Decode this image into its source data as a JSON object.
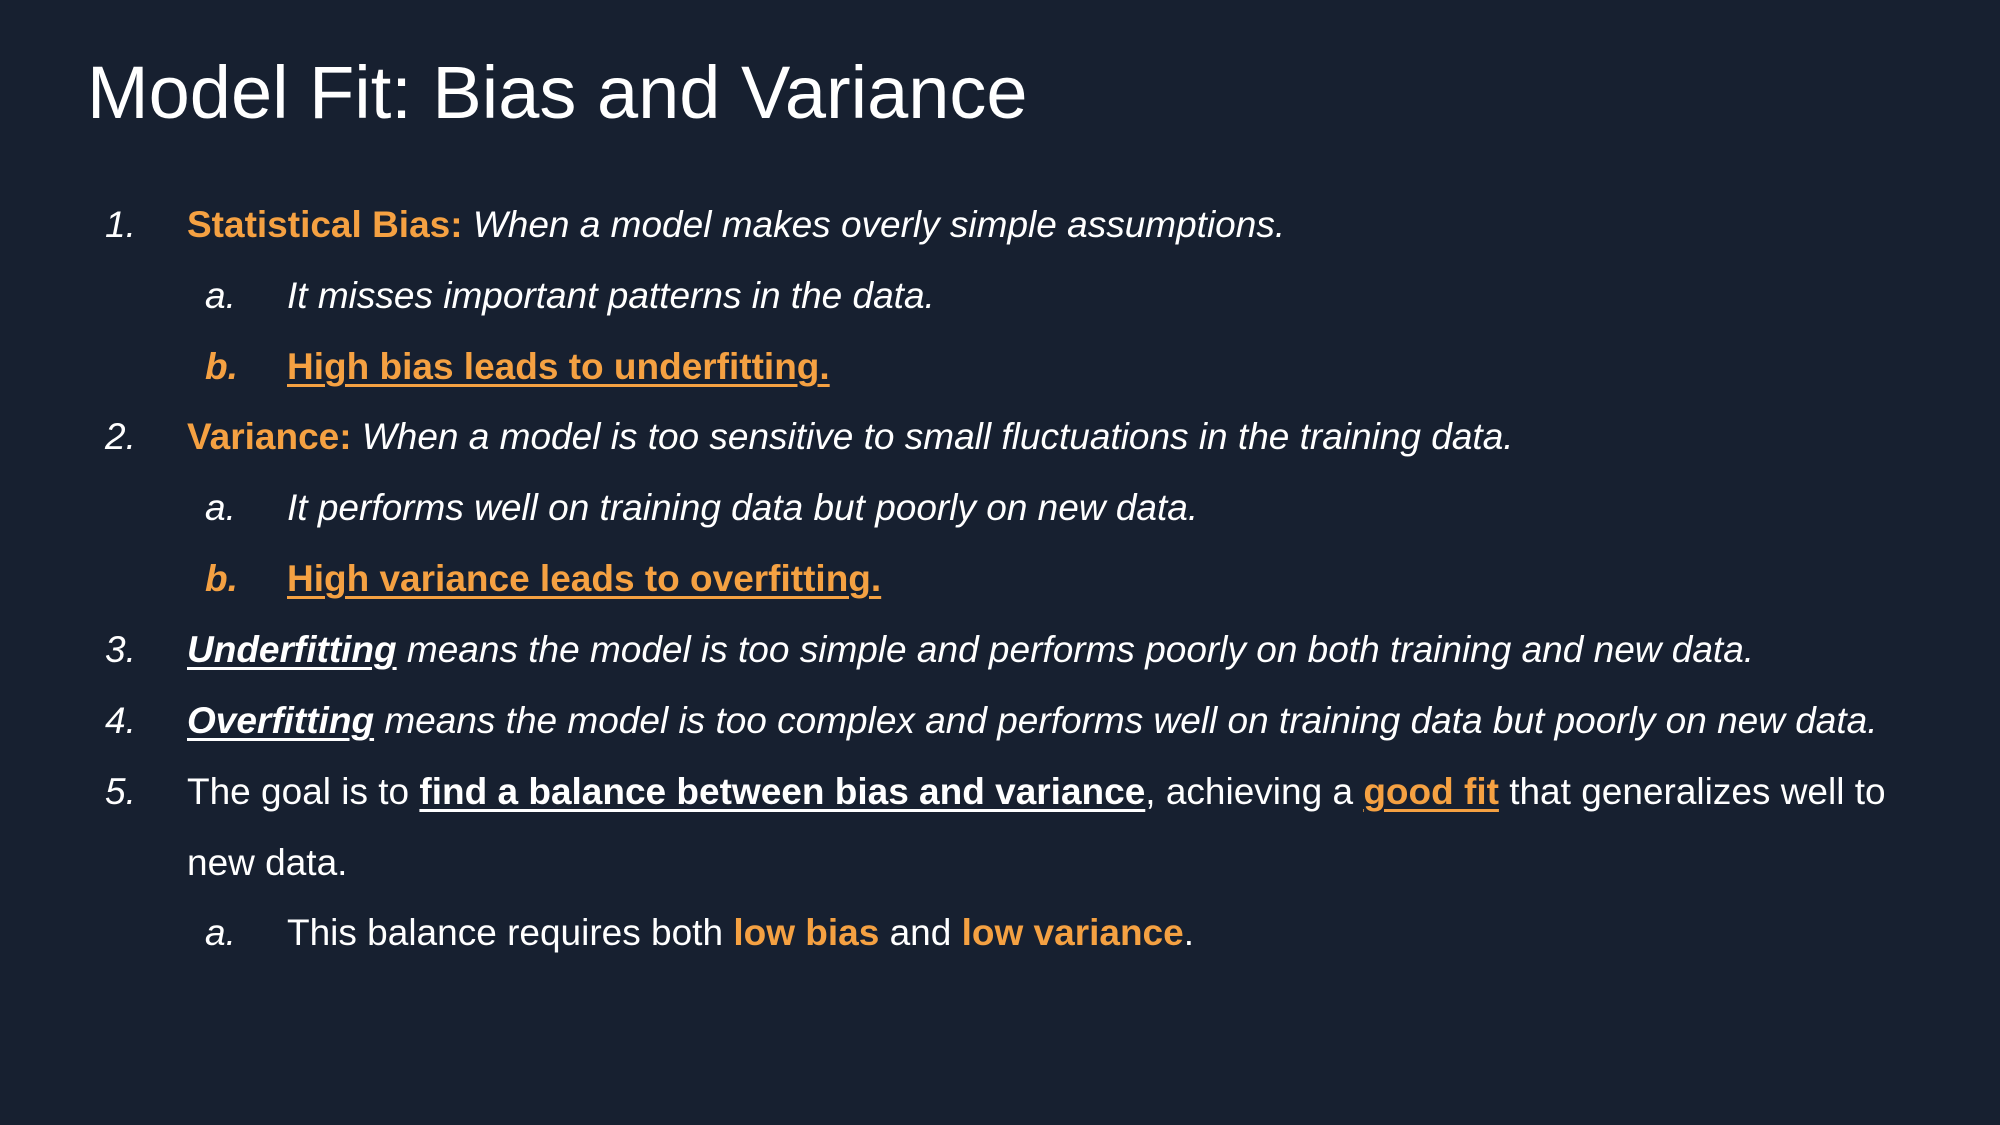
{
  "slide": {
    "title": "Model Fit: Bias and Variance",
    "items": [
      {
        "marker": "1.",
        "term": "Statistical Bias:",
        "text": " When a model makes overly simple assumptions.",
        "subitems": [
          {
            "marker": "a.",
            "text": "It misses important patterns in the data."
          },
          {
            "marker": "b.",
            "text": "High bias leads to underfitting."
          }
        ]
      },
      {
        "marker": "2.",
        "term": "Variance:",
        "text": " When a model is too sensitive to small fluctuations in the training data.",
        "subitems": [
          {
            "marker": "a.",
            "text": "It performs well on training data but poorly on new data."
          },
          {
            "marker": "b.",
            "text": "High variance leads to overfitting."
          }
        ]
      },
      {
        "marker": "3.",
        "term": "Underfitting",
        "text": " means the model is too simple and performs poorly on both training and new data."
      },
      {
        "marker": "4.",
        "term": "Overfitting",
        "text": " means the model is too complex and performs well on training data but poorly on new data."
      },
      {
        "marker": "5.",
        "text_before": "The goal is to ",
        "emphasis": "find a balance between bias and variance",
        "text_middle": ", achieving a ",
        "highlight": "good fit",
        "text_after": " that generalizes well to",
        "continuation": "new data.",
        "subitems": [
          {
            "marker": "a.",
            "text_before": "This balance requires both ",
            "highlight1": "low bias",
            "text_middle": " and ",
            "highlight2": "low variance",
            "text_after": "."
          }
        ]
      }
    ]
  },
  "colors": {
    "background": "#172030",
    "accent": "#f5a142",
    "text": "#ffffff"
  }
}
